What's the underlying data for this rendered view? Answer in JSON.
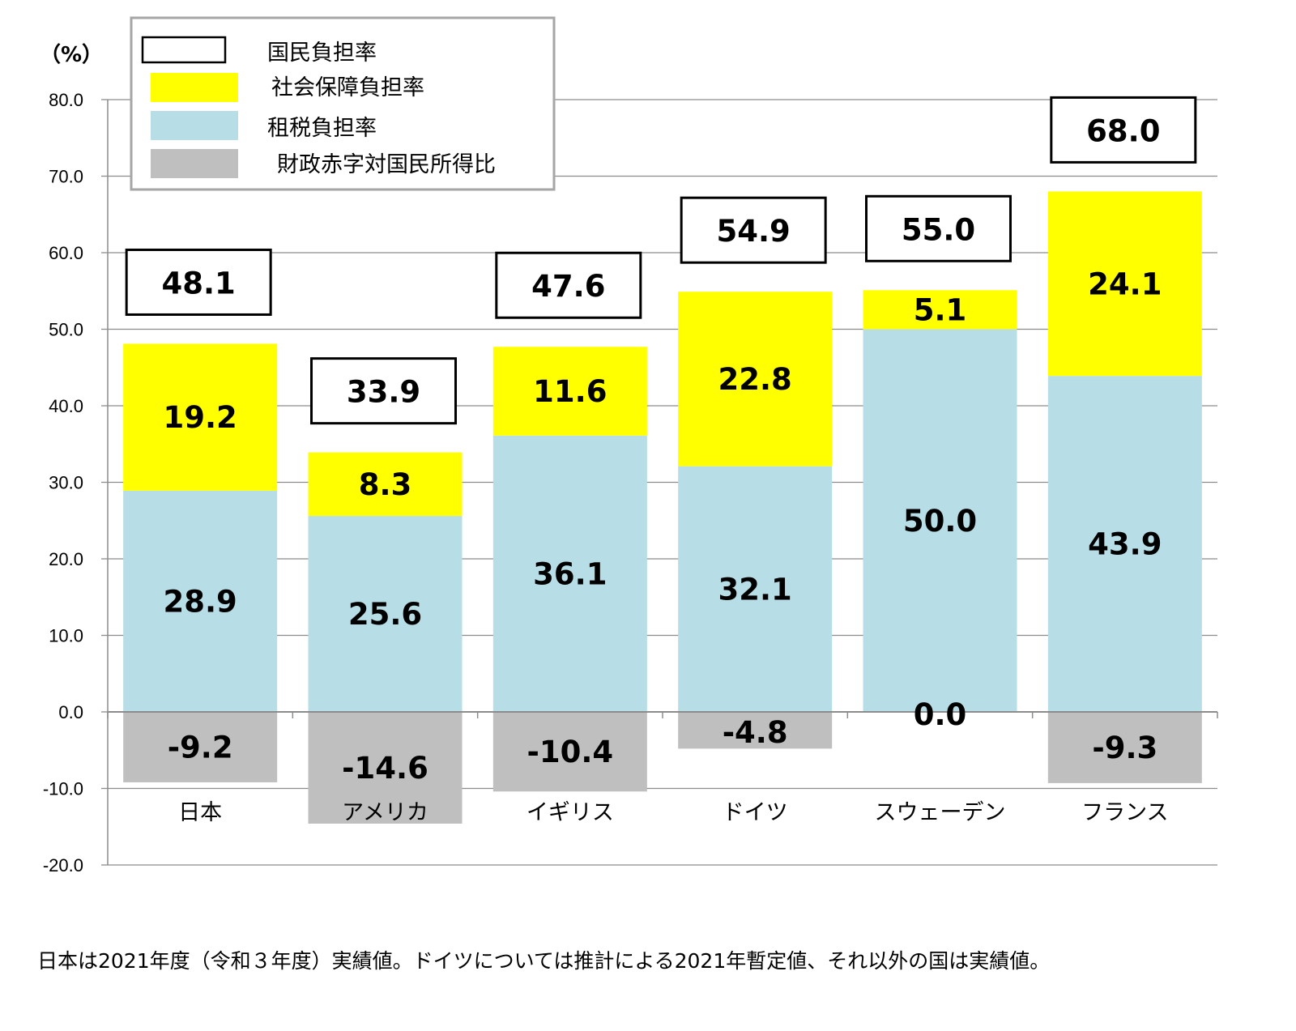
{
  "chart_data": {
    "type": "bar",
    "stacked": true,
    "unit_label": "（%）",
    "categories": [
      "日本",
      "アメリカ",
      "イギリス",
      "ドイツ",
      "スウェーデン",
      "フランス"
    ],
    "series": [
      {
        "name": "租税負担率",
        "color": "#b7dde6",
        "values": [
          28.9,
          25.6,
          36.1,
          32.1,
          50.0,
          43.9
        ]
      },
      {
        "name": "社会保障負担率",
        "color": "#ffff00",
        "values": [
          19.2,
          8.3,
          11.6,
          22.8,
          5.1,
          24.1
        ]
      },
      {
        "name": "財政赤字対国民所得比",
        "color": "#bfbfbf",
        "values": [
          -9.2,
          -14.6,
          -10.4,
          -4.8,
          0.0,
          -9.3
        ]
      }
    ],
    "totals": {
      "name": "国民負担率",
      "values": [
        48.1,
        33.9,
        47.6,
        54.9,
        55.0,
        68.0
      ]
    },
    "ylim": [
      -20,
      80
    ],
    "yticks": [
      "80.0",
      "70.0",
      "60.0",
      "50.0",
      "40.0",
      "30.0",
      "20.0",
      "10.0",
      "0.0",
      "-10.0",
      "-20.0"
    ],
    "legend": {
      "placement": "top-left",
      "entries": [
        {
          "label": "国民負担率",
          "swatch": "outline"
        },
        {
          "label": "社会保障負担率",
          "swatch": "#ffff00"
        },
        {
          "label": "租税負担率",
          "swatch": "#b7dde6"
        },
        {
          "label": "財政赤字対国民所得比",
          "swatch": "#bfbfbf"
        }
      ]
    },
    "grid": true
  },
  "footnote": "日本は2021年度（令和３年度）実績値。ドイツについては推計による2021年暫定値、それ以外の国は実績値。"
}
